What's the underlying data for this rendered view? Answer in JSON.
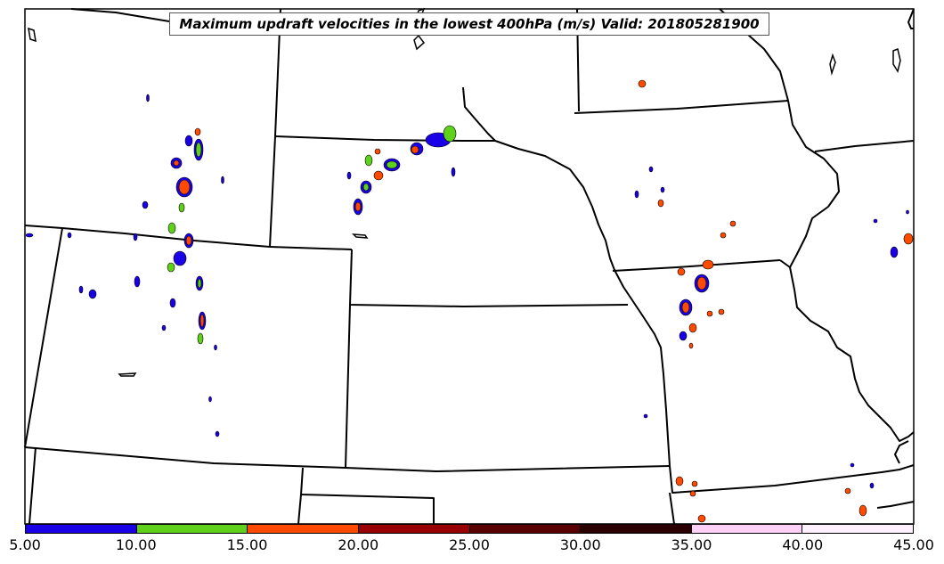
{
  "map": {
    "title": "Maximum updraft velocities in the lowest 400hPa (m/s) Valid: 201805281900"
  },
  "colorbar": {
    "colors": [
      "#1a00e6",
      "#5fd11a",
      "#ff4a00",
      "#990000",
      "#5a0000",
      "#2a0000",
      "#ffd0f8",
      "#fff0ff"
    ],
    "ticks": [
      "5.00",
      "10.00",
      "15.00",
      "20.00",
      "25.00",
      "30.00",
      "35.00",
      "40.00",
      "45.00"
    ]
  }
}
